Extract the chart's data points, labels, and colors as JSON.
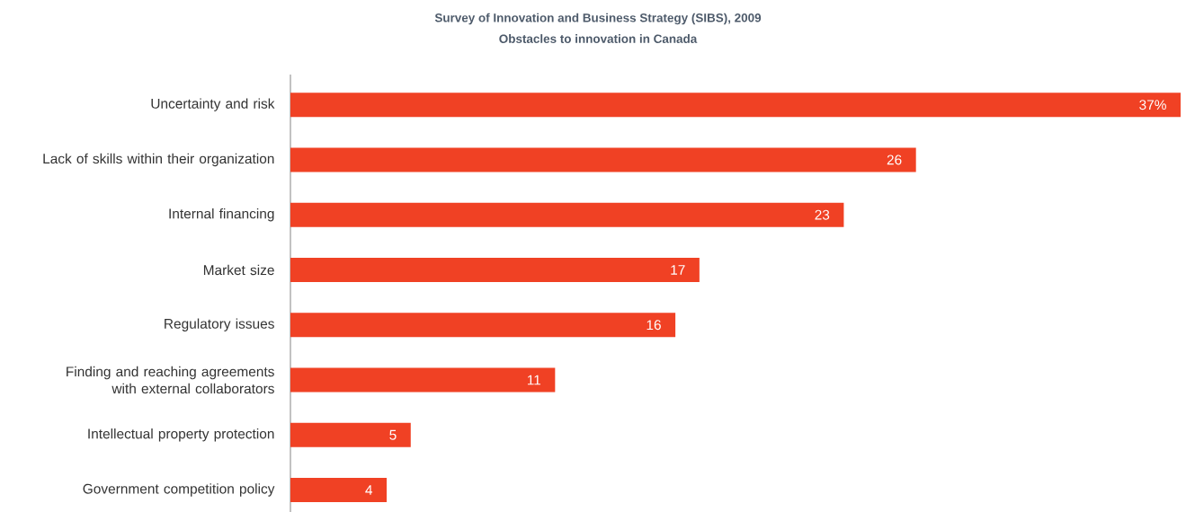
{
  "chart_data": {
    "type": "bar",
    "orientation": "horizontal",
    "title": "Survey of Innovation and Business Strategy (SIBS), 2009",
    "subtitle": "Obstacles to innovation in Canada",
    "categories": [
      "Uncertainty and risk",
      "Lack of skills within their organization",
      "Internal financing",
      "Market size",
      "Regulatory issues",
      "Finding and reaching agreements with external collaborators",
      "Intellectual property protection",
      "Government competition policy"
    ],
    "values": [
      37,
      26,
      23,
      17,
      16,
      11,
      5,
      4
    ],
    "value_labels": [
      "37%",
      "26",
      "23",
      "17",
      "16",
      "11",
      "5",
      "4"
    ],
    "color": "#f04124",
    "xlim": [
      0,
      37
    ]
  }
}
